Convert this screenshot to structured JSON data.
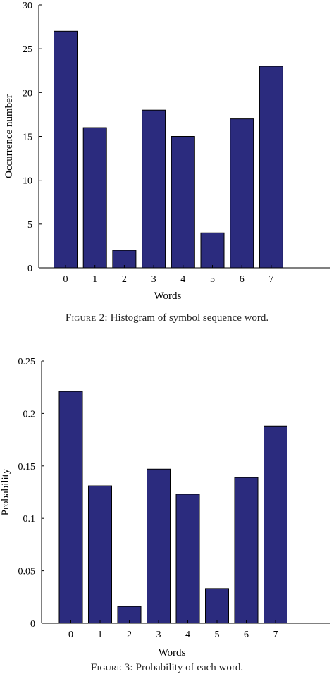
{
  "chart_data": [
    {
      "type": "bar",
      "categories": [
        "0",
        "1",
        "2",
        "3",
        "4",
        "5",
        "6",
        "7"
      ],
      "values": [
        27,
        16,
        2,
        18,
        15,
        4,
        17,
        23
      ],
      "xlabel": "Words",
      "ylabel": "Occurrence number",
      "ylim": [
        0,
        30
      ],
      "yticks": [
        "0",
        "5",
        "10",
        "15",
        "20",
        "25",
        "30"
      ],
      "bar_color": "#2b2b7e",
      "grid": false
    },
    {
      "type": "bar",
      "categories": [
        "0",
        "1",
        "2",
        "3",
        "4",
        "5",
        "6",
        "7"
      ],
      "values": [
        0.221,
        0.131,
        0.016,
        0.147,
        0.123,
        0.033,
        0.139,
        0.188
      ],
      "xlabel": "Words",
      "ylabel": "Probability",
      "ylim": [
        0,
        0.25
      ],
      "yticks": [
        "0",
        "0.05",
        "0.1",
        "0.15",
        "0.2",
        "0.25"
      ],
      "bar_color": "#2b2b7e",
      "grid": false
    }
  ],
  "captions": [
    {
      "label": "Figure 2:",
      "text": " Histogram of symbol sequence word."
    },
    {
      "label": "Figure 3:",
      "text": " Probability of each word."
    }
  ]
}
